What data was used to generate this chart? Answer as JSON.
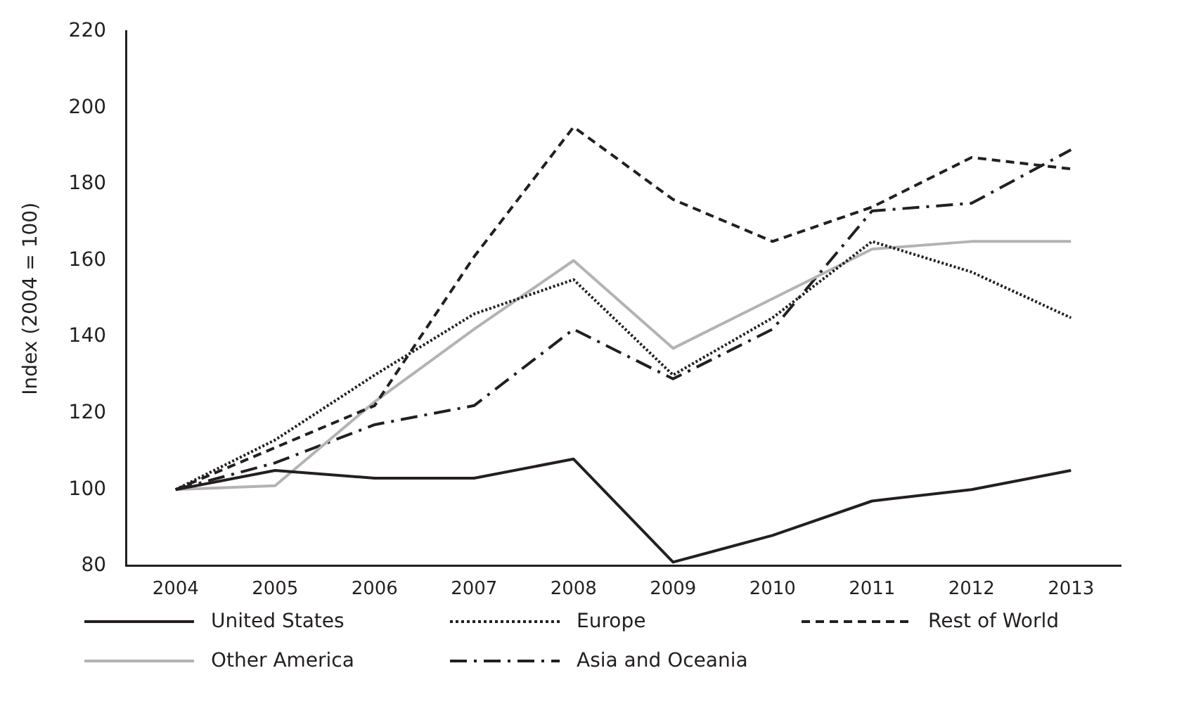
{
  "chart_data": {
    "type": "line",
    "ylabel": "Index (2004 = 100)",
    "categories": [
      "2004",
      "2005",
      "2006",
      "2007",
      "2008",
      "2009",
      "2010",
      "2011",
      "2012",
      "2013"
    ],
    "ylim": [
      80,
      220
    ],
    "yticks": [
      80,
      100,
      120,
      140,
      160,
      180,
      200,
      220
    ],
    "grid": false,
    "legend": "bottom",
    "marker": "none",
    "series": [
      {
        "name": "United States",
        "color": "#231f20",
        "line_style": "solid",
        "values": [
          100,
          105,
          103,
          103,
          108,
          81,
          88,
          97,
          100,
          105
        ]
      },
      {
        "name": "Europe",
        "color": "#231f20",
        "line_style": "dotted",
        "values": [
          100,
          113,
          130,
          146,
          155,
          130,
          145,
          165,
          157,
          145
        ]
      },
      {
        "name": "Rest of World",
        "color": "#231f20",
        "line_style": "dashed",
        "values": [
          100,
          111,
          122,
          161,
          195,
          176,
          165,
          174,
          187,
          184
        ]
      },
      {
        "name": "Other America",
        "color": "#b3b3b3",
        "line_style": "solid",
        "values": [
          100,
          101,
          123,
          142,
          160,
          137,
          150,
          163,
          165,
          165
        ]
      },
      {
        "name": "Asia and Oceania",
        "color": "#231f20",
        "line_style": "dashdot",
        "values": [
          100,
          107,
          117,
          122,
          142,
          129,
          142,
          173,
          175,
          189
        ]
      }
    ]
  }
}
